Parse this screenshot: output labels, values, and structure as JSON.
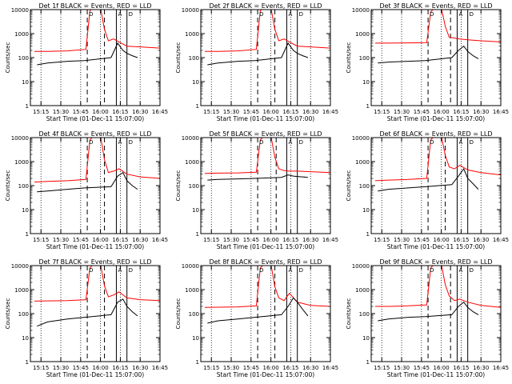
{
  "chart_data": [
    {
      "type": "line",
      "title": "Det 1f BLACK = Events, RED = LLD",
      "xlabel": "Start Time (01-Dec-11 15:07:00)",
      "ylabel": "Counts/sec",
      "yscale": "log",
      "ylim": [
        1,
        10000
      ],
      "xlim": [
        "15:07",
        "16:45"
      ],
      "x_ticks": [
        "15:15",
        "15:30",
        "15:45",
        "16:00",
        "16:15",
        "16:30",
        "16:45"
      ],
      "y_ticks": [
        "1",
        "10",
        "100",
        "1000",
        "10000"
      ],
      "dotted_lines": [
        "15:15",
        "15:30",
        "15:45",
        "16:00",
        "16:15",
        "16:30"
      ],
      "dashed_lines": [
        "15:50",
        "16:03"
      ],
      "solid_lines": [
        "16:12",
        "16:20"
      ],
      "annotations": [
        "D",
        "A",
        "D"
      ],
      "series": [
        {
          "color": "#ff0000",
          "x": [
            "15:10",
            "15:20",
            "15:35",
            "15:49",
            "15:52",
            "15:55",
            "16:00",
            "16:03",
            "16:06",
            "16:10",
            "16:14",
            "16:20",
            "16:30",
            "16:45"
          ],
          "values": [
            180,
            180,
            190,
            220,
            9000,
            12000,
            12000,
            1500,
            500,
            600,
            450,
            300,
            280,
            250
          ]
        },
        {
          "color": "#000000",
          "x": [
            "15:12",
            "15:20",
            "15:35",
            "15:48",
            "16:08",
            "16:13",
            "16:17",
            "16:20",
            "16:24",
            "16:28"
          ],
          "values": [
            50,
            60,
            70,
            75,
            100,
            400,
            200,
            150,
            120,
            100
          ]
        }
      ]
    },
    {
      "type": "line",
      "title": "Det 2f BLACK = Events, RED = LLD",
      "xlabel": "Start Time (01-Dec-11 15:07:00)",
      "ylabel": "Counts/sec",
      "yscale": "log",
      "ylim": [
        1,
        10000
      ],
      "xlim": [
        "15:07",
        "16:45"
      ],
      "x_ticks": [
        "15:15",
        "15:30",
        "15:45",
        "16:00",
        "16:15",
        "16:30",
        "16:45"
      ],
      "y_ticks": [
        "1",
        "10",
        "100",
        "1000",
        "10000"
      ],
      "dotted_lines": [
        "15:15",
        "15:30",
        "15:45",
        "16:00",
        "16:15",
        "16:30"
      ],
      "dashed_lines": [
        "15:50",
        "16:03"
      ],
      "solid_lines": [
        "16:12",
        "16:20"
      ],
      "annotations": [
        "D",
        "A",
        "D"
      ],
      "series": [
        {
          "color": "#ff0000",
          "x": [
            "15:10",
            "15:20",
            "15:35",
            "15:49",
            "15:52",
            "15:55",
            "16:00",
            "16:03",
            "16:06",
            "16:10",
            "16:14",
            "16:20",
            "16:30",
            "16:45"
          ],
          "values": [
            180,
            180,
            190,
            220,
            9000,
            12000,
            12000,
            1500,
            500,
            600,
            450,
            300,
            280,
            250
          ]
        },
        {
          "color": "#000000",
          "x": [
            "15:12",
            "15:20",
            "15:35",
            "15:48",
            "16:08",
            "16:13",
            "16:17",
            "16:20",
            "16:24",
            "16:28"
          ],
          "values": [
            50,
            60,
            70,
            75,
            100,
            400,
            200,
            150,
            120,
            100
          ]
        }
      ]
    },
    {
      "type": "line",
      "title": "Det 3f BLACK = Events, RED = LLD",
      "xlabel": "Start Time (01-Dec-11 15:07:00)",
      "ylabel": "Counts/sec",
      "yscale": "log",
      "ylim": [
        1,
        10000
      ],
      "xlim": [
        "15:07",
        "16:45"
      ],
      "x_ticks": [
        "15:15",
        "15:30",
        "15:45",
        "16:00",
        "16:15",
        "16:30",
        "16:45"
      ],
      "y_ticks": [
        "1",
        "10",
        "100",
        "1000",
        "10000"
      ],
      "dotted_lines": [
        "15:15",
        "15:30",
        "15:45",
        "16:00",
        "16:15",
        "16:30"
      ],
      "dashed_lines": [
        "15:50",
        "16:07"
      ],
      "solid_lines": [
        "16:12",
        "16:20"
      ],
      "annotations": [
        "D",
        "A",
        "D"
      ],
      "series": [
        {
          "color": "#ff0000",
          "x": [
            "15:10",
            "15:20",
            "15:35",
            "15:49",
            "15:52",
            "15:55",
            "16:00",
            "16:03",
            "16:06",
            "16:10",
            "16:14",
            "16:20",
            "16:30",
            "16:45"
          ],
          "values": [
            400,
            400,
            410,
            420,
            8000,
            12000,
            12000,
            2000,
            700,
            650,
            600,
            550,
            500,
            450
          ]
        },
        {
          "color": "#000000",
          "x": [
            "15:12",
            "15:20",
            "15:35",
            "15:48",
            "16:08",
            "16:13",
            "16:17",
            "16:20",
            "16:24",
            "16:28"
          ],
          "values": [
            60,
            65,
            70,
            75,
            100,
            200,
            300,
            180,
            120,
            90
          ]
        }
      ]
    },
    {
      "type": "line",
      "title": "Det 4f BLACK = Events, RED = LLD",
      "xlabel": "Start Time (01-Dec-11 15:07:00)",
      "ylabel": "Counts/sec",
      "yscale": "log",
      "ylim": [
        1,
        10000
      ],
      "xlim": [
        "15:07",
        "16:45"
      ],
      "x_ticks": [
        "15:15",
        "15:30",
        "15:45",
        "16:00",
        "16:15",
        "16:30",
        "16:45"
      ],
      "y_ticks": [
        "1",
        "10",
        "100",
        "1000",
        "10000"
      ],
      "dotted_lines": [
        "15:15",
        "15:30",
        "15:45",
        "16:00",
        "16:15",
        "16:30"
      ],
      "dashed_lines": [
        "15:50",
        "16:03"
      ],
      "solid_lines": [
        "16:12",
        "16:20"
      ],
      "annotations": [
        "D",
        "A",
        "D"
      ],
      "series": [
        {
          "color": "#ff0000",
          "x": [
            "15:10",
            "15:20",
            "15:35",
            "15:49",
            "15:52",
            "15:55",
            "16:00",
            "16:03",
            "16:06",
            "16:10",
            "16:14",
            "16:20",
            "16:30",
            "16:45"
          ],
          "values": [
            140,
            150,
            160,
            180,
            8000,
            12000,
            12000,
            1200,
            350,
            400,
            500,
            300,
            230,
            200
          ]
        },
        {
          "color": "#000000",
          "x": [
            "15:12",
            "15:20",
            "15:35",
            "15:48",
            "16:08",
            "16:13",
            "16:17",
            "16:20",
            "16:24",
            "16:28"
          ],
          "values": [
            55,
            60,
            70,
            80,
            90,
            250,
            350,
            160,
            100,
            70
          ]
        }
      ]
    },
    {
      "type": "line",
      "title": "Det 5f BLACK = Events, RED = LLD",
      "xlabel": "Start Time (01-Dec-11 15:07:00)",
      "ylabel": "Counts/sec",
      "yscale": "log",
      "ylim": [
        1,
        10000
      ],
      "xlim": [
        "15:07",
        "16:45"
      ],
      "x_ticks": [
        "15:15",
        "15:30",
        "15:45",
        "16:00",
        "16:15",
        "16:30",
        "16:45"
      ],
      "y_ticks": [
        "1",
        "10",
        "100",
        "1000",
        "10000"
      ],
      "dotted_lines": [
        "15:15",
        "15:30",
        "15:45",
        "16:00",
        "16:15",
        "16:30"
      ],
      "dashed_lines": [
        "15:50",
        "16:04"
      ],
      "solid_lines": [
        "16:12",
        "16:20"
      ],
      "annotations": [
        "D",
        "A",
        "D"
      ],
      "series": [
        {
          "color": "#ff0000",
          "x": [
            "15:10",
            "15:20",
            "15:35",
            "15:49",
            "15:52",
            "15:55",
            "16:00",
            "16:03",
            "16:06",
            "16:10",
            "16:14",
            "16:20",
            "16:30",
            "16:45"
          ],
          "values": [
            320,
            330,
            340,
            360,
            8000,
            12000,
            12000,
            1500,
            500,
            420,
            400,
            400,
            380,
            350
          ]
        },
        {
          "color": "#000000",
          "x": [
            "15:12",
            "15:20",
            "15:35",
            "15:48",
            "16:08",
            "16:13",
            "16:17",
            "16:20",
            "16:24",
            "16:28"
          ],
          "values": [
            170,
            180,
            190,
            200,
            220,
            280,
            250,
            240,
            230,
            220
          ]
        }
      ]
    },
    {
      "type": "line",
      "title": "Det 6f BLACK = Events, RED = LLD",
      "xlabel": "Start Time (01-Dec-11 15:07:00)",
      "ylabel": "Counts/sec",
      "yscale": "log",
      "ylim": [
        1,
        10000
      ],
      "xlim": [
        "15:07",
        "16:45"
      ],
      "x_ticks": [
        "15:15",
        "15:30",
        "15:45",
        "16:00",
        "16:15",
        "16:30",
        "16:45"
      ],
      "y_ticks": [
        "1",
        "10",
        "100",
        "1000",
        "10000"
      ],
      "dotted_lines": [
        "15:15",
        "15:30",
        "15:45",
        "16:00",
        "16:15",
        "16:30"
      ],
      "dashed_lines": [
        "15:50",
        "16:03"
      ],
      "solid_lines": [
        "16:12",
        "16:20"
      ],
      "annotations": [
        "D",
        "A",
        "D"
      ],
      "series": [
        {
          "color": "#ff0000",
          "x": [
            "15:10",
            "15:20",
            "15:35",
            "15:49",
            "15:52",
            "15:55",
            "16:00",
            "16:03",
            "16:06",
            "16:10",
            "16:14",
            "16:20",
            "16:30",
            "16:45"
          ],
          "values": [
            160,
            170,
            180,
            200,
            8000,
            12000,
            12000,
            1800,
            600,
            500,
            700,
            450,
            350,
            280
          ]
        },
        {
          "color": "#000000",
          "x": [
            "15:12",
            "15:20",
            "15:35",
            "15:48",
            "16:08",
            "16:13",
            "16:17",
            "16:20",
            "16:24",
            "16:28"
          ],
          "values": [
            60,
            70,
            80,
            90,
            110,
            250,
            500,
            200,
            120,
            70
          ]
        }
      ]
    },
    {
      "type": "line",
      "title": "Det 7f BLACK = Events, RED = LLD",
      "xlabel": "Start Time (01-Dec-11 15:07:00)",
      "ylabel": "Counts/sec",
      "yscale": "log",
      "ylim": [
        1,
        10000
      ],
      "xlim": [
        "15:07",
        "16:45"
      ],
      "x_ticks": [
        "15:15",
        "15:30",
        "15:45",
        "16:00",
        "16:15",
        "16:30",
        "16:45"
      ],
      "y_ticks": [
        "1",
        "10",
        "100",
        "1000",
        "10000"
      ],
      "dotted_lines": [
        "15:15",
        "15:30",
        "15:45",
        "16:00",
        "16:15",
        "16:30"
      ],
      "dashed_lines": [
        "15:50",
        "16:03"
      ],
      "solid_lines": [
        "16:12",
        "16:20"
      ],
      "annotations": [
        "D",
        "A",
        "D"
      ],
      "series": [
        {
          "color": "#ff0000",
          "x": [
            "15:10",
            "15:20",
            "15:35",
            "15:49",
            "15:52",
            "15:55",
            "16:00",
            "16:03",
            "16:06",
            "16:10",
            "16:14",
            "16:20",
            "16:30",
            "16:45"
          ],
          "values": [
            330,
            340,
            350,
            380,
            8000,
            12000,
            12000,
            1400,
            500,
            600,
            800,
            450,
            380,
            350
          ]
        },
        {
          "color": "#000000",
          "x": [
            "15:12",
            "15:20",
            "15:35",
            "15:48",
            "16:08",
            "16:13",
            "16:17",
            "16:20",
            "16:24",
            "16:28"
          ],
          "values": [
            30,
            45,
            60,
            70,
            90,
            300,
            400,
            200,
            120,
            80
          ]
        }
      ]
    },
    {
      "type": "line",
      "title": "Det 8f BLACK = Events, RED = LLD",
      "xlabel": "Start Time (01-Dec-11 15:07:00)",
      "ylabel": "Counts/sec",
      "yscale": "log",
      "ylim": [
        1,
        10000
      ],
      "xlim": [
        "15:07",
        "16:45"
      ],
      "x_ticks": [
        "15:15",
        "15:30",
        "15:45",
        "16:00",
        "16:15",
        "16:30",
        "16:45"
      ],
      "y_ticks": [
        "1",
        "10",
        "100",
        "1000",
        "10000"
      ],
      "dotted_lines": [
        "15:15",
        "15:30",
        "15:45",
        "16:00",
        "16:15",
        "16:30"
      ],
      "dashed_lines": [
        "15:50",
        "16:03"
      ],
      "solid_lines": [
        "16:12",
        "16:20"
      ],
      "annotations": [
        "D",
        "A",
        "D"
      ],
      "series": [
        {
          "color": "#ff0000",
          "x": [
            "15:10",
            "15:20",
            "15:35",
            "15:49",
            "15:52",
            "15:55",
            "16:00",
            "16:03",
            "16:06",
            "16:10",
            "16:14",
            "16:20",
            "16:30",
            "16:45"
          ],
          "values": [
            180,
            185,
            190,
            210,
            8000,
            12000,
            12000,
            1300,
            450,
            350,
            700,
            300,
            220,
            200
          ]
        },
        {
          "color": "#000000",
          "x": [
            "15:12",
            "15:20",
            "15:35",
            "15:48",
            "16:08",
            "16:13",
            "16:17",
            "16:20",
            "16:24",
            "16:28"
          ],
          "values": [
            40,
            50,
            60,
            70,
            90,
            200,
            450,
            300,
            150,
            80
          ]
        }
      ]
    },
    {
      "type": "line",
      "title": "Det 9f BLACK = Events, RED = LLD",
      "xlabel": "Start Time (01-Dec-11 15:07:00)",
      "ylabel": "Counts/sec",
      "yscale": "log",
      "ylim": [
        1,
        10000
      ],
      "xlim": [
        "15:07",
        "16:45"
      ],
      "x_ticks": [
        "15:15",
        "15:30",
        "15:45",
        "16:00",
        "16:15",
        "16:30",
        "16:45"
      ],
      "y_ticks": [
        "1",
        "10",
        "100",
        "1000",
        "10000"
      ],
      "dotted_lines": [
        "15:15",
        "15:30",
        "15:45",
        "16:00",
        "16:15",
        "16:30"
      ],
      "dashed_lines": [
        "15:50",
        "16:07"
      ],
      "solid_lines": [
        "16:12",
        "16:20"
      ],
      "annotations": [
        "D",
        "A",
        "D"
      ],
      "series": [
        {
          "color": "#ff0000",
          "x": [
            "15:10",
            "15:20",
            "15:35",
            "15:49",
            "15:52",
            "15:55",
            "16:00",
            "16:03",
            "16:06",
            "16:10",
            "16:14",
            "16:20",
            "16:30",
            "16:45"
          ],
          "values": [
            200,
            200,
            210,
            230,
            8000,
            12000,
            12000,
            1600,
            550,
            350,
            400,
            300,
            220,
            180
          ]
        },
        {
          "color": "#000000",
          "x": [
            "15:12",
            "15:20",
            "15:35",
            "15:48",
            "16:08",
            "16:13",
            "16:17",
            "16:20",
            "16:24",
            "16:28"
          ],
          "values": [
            50,
            60,
            70,
            75,
            90,
            200,
            300,
            180,
            120,
            90
          ]
        }
      ]
    }
  ]
}
